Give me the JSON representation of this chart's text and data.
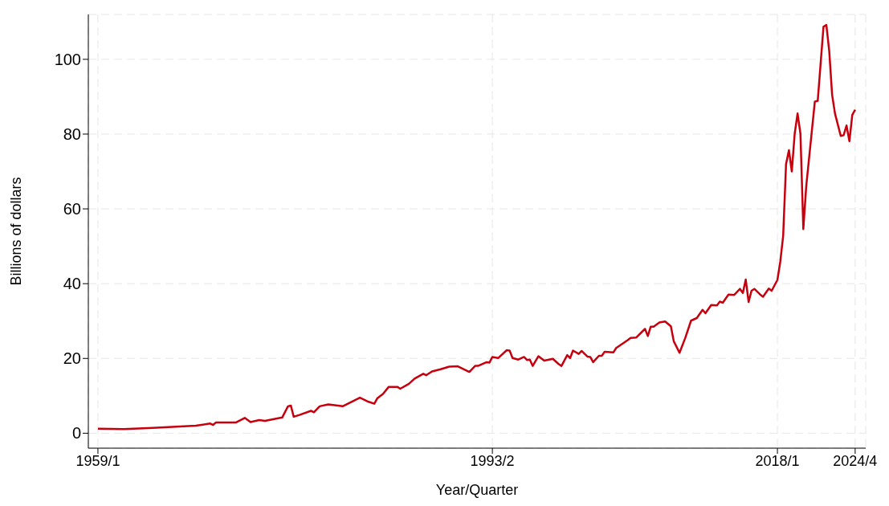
{
  "chart_data": {
    "type": "line",
    "xlabel": "Year/Quarter",
    "ylabel": "Billions of dollars",
    "x": [
      "1959-01",
      "1961-04",
      "1963-10",
      "1967-07",
      "1968-10",
      "1969-01",
      "1969-04",
      "1971-01",
      "1971-10",
      "1972-04",
      "1973-01",
      "1973-07",
      "1975-01",
      "1975-07",
      "1975-10",
      "1976-01",
      "1976-07",
      "1977-07",
      "1977-10",
      "1978-04",
      "1979-01",
      "1980-04",
      "1981-10",
      "1982-07",
      "1983-01",
      "1983-04",
      "1983-10",
      "1984-04",
      "1985-01",
      "1985-04",
      "1986-01",
      "1986-07",
      "1987-04",
      "1987-07",
      "1988-01",
      "1988-10",
      "1989-07",
      "1990-04",
      "1991-04",
      "1991-10",
      "1992-01",
      "1992-10",
      "1993-01",
      "1993-04",
      "1993-10",
      "1994-07",
      "1994-10",
      "1995-01",
      "1995-07",
      "1996-01",
      "1996-04",
      "1996-07",
      "1996-10",
      "1997-04",
      "1997-10",
      "1998-07",
      "1999-01",
      "1999-04",
      "1999-10",
      "2000-01",
      "2000-04",
      "2000-10",
      "2001-01",
      "2001-07",
      "2001-10",
      "2002-01",
      "2002-07",
      "2002-10",
      "2003-01",
      "2003-10",
      "2004-01",
      "2005-01",
      "2005-04",
      "2005-10",
      "2006-07",
      "2006-10",
      "2007-01",
      "2007-04",
      "2007-10",
      "2008-04",
      "2008-10",
      "2009-01",
      "2009-07",
      "2010-01",
      "2010-07",
      "2011-01",
      "2011-07",
      "2011-10",
      "2012-04",
      "2012-10",
      "2013-01",
      "2013-04",
      "2013-10",
      "2014-04",
      "2014-10",
      "2015-01",
      "2015-04",
      "2015-07",
      "2015-10",
      "2016-01",
      "2016-07",
      "2016-10",
      "2017-04",
      "2017-07",
      "2018-01",
      "2018-04",
      "2018-07",
      "2018-10",
      "2019-01",
      "2019-04",
      "2019-07",
      "2019-10",
      "2020-01",
      "2020-04",
      "2020-07",
      "2021-04",
      "2021-07",
      "2022-01",
      "2022-04",
      "2022-07",
      "2022-10",
      "2023-01",
      "2023-07",
      "2023-10",
      "2024-01",
      "2024-04",
      "2024-07",
      "2024-10"
    ],
    "series": [
      {
        "color": "#c8000e",
        "values": [
          1.2,
          1.1,
          1.4,
          2.0,
          2.6,
          2.2,
          2.9,
          2.9,
          4.1,
          3.0,
          3.5,
          3.3,
          4.2,
          7.2,
          7.4,
          4.4,
          4.9,
          6.0,
          5.6,
          7.2,
          7.7,
          7.2,
          9.5,
          8.4,
          7.9,
          9.3,
          10.5,
          12.4,
          12.4,
          11.9,
          13.2,
          14.6,
          15.9,
          15.5,
          16.5,
          17.1,
          17.8,
          17.9,
          16.4,
          18.0,
          18.0,
          19.0,
          18.9,
          20.4,
          20.1,
          22.2,
          22.1,
          20.1,
          19.7,
          20.4,
          19.6,
          19.7,
          18.0,
          20.6,
          19.4,
          19.9,
          18.5,
          18.0,
          20.9,
          20.1,
          22.1,
          21.2,
          22.0,
          20.5,
          20.4,
          19.0,
          20.7,
          20.7,
          21.8,
          21.6,
          22.8,
          24.9,
          25.5,
          25.6,
          27.9,
          26.0,
          28.5,
          28.5,
          29.6,
          29.9,
          28.6,
          24.6,
          21.5,
          25.5,
          30.1,
          30.8,
          33.0,
          32.1,
          34.3,
          34.2,
          35.2,
          34.9,
          37.1,
          37.0,
          38.6,
          37.5,
          41.1,
          35.1,
          38.1,
          38.6,
          37.1,
          36.5,
          38.7,
          38.1,
          41.0,
          45.9,
          52.8,
          72.0,
          75.7,
          70.0,
          80.1,
          85.5,
          80.1,
          54.6,
          66.0,
          88.7,
          88.9,
          108.7,
          109.2,
          102.2,
          90.5,
          85.5,
          79.5,
          79.7,
          82.3,
          78.1,
          85.1,
          86.5
        ]
      }
    ],
    "xlim": [
      "1958-03",
      "2025-09"
    ],
    "xticks": [
      {
        "value": "1959-01",
        "label": "1959/1"
      },
      {
        "value": "1993-04",
        "label": "1993/2"
      },
      {
        "value": "2018-01",
        "label": "2018/1"
      },
      {
        "value": "2024-10",
        "label": "2024/4"
      }
    ],
    "ylim": [
      -4,
      112
    ],
    "yticks": [
      0,
      20,
      40,
      60,
      80,
      100
    ],
    "grid": true,
    "legend": false,
    "marker": "none",
    "line_style": "solid"
  }
}
